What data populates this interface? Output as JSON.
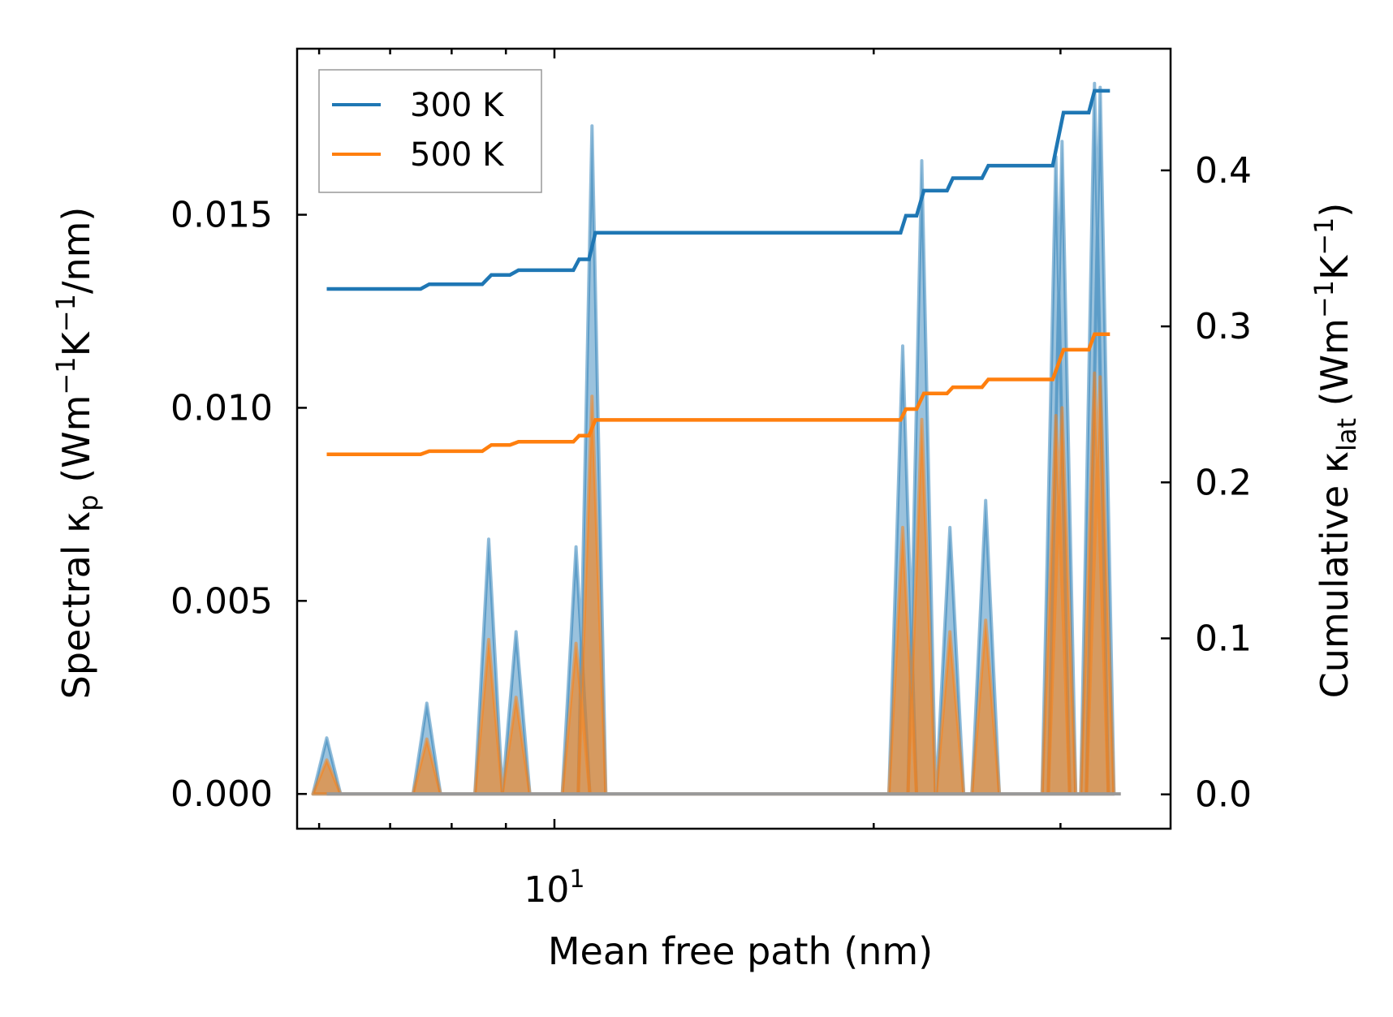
{
  "chart_data": {
    "type": "line",
    "title": "",
    "xlabel": "Mean free path (nm)",
    "ylabel_left": {
      "main": "Spectral κ",
      "sub": "p",
      "unit_open": " (Wm",
      "exp1": "−1",
      "mid": "K",
      "exp2": "−1",
      "unit_close": "/nm)"
    },
    "ylabel_right": {
      "main": "Cumulative κ",
      "sub": "lat",
      "unit_open": " (Wm",
      "exp1": "−1",
      "mid": "K",
      "exp2": "−1",
      "unit_close": ")"
    },
    "xscale": "log",
    "xlim": [
      5.72,
      38.1
    ],
    "xticks": [
      {
        "value": 10,
        "label": "10",
        "exp": "1"
      }
    ],
    "ylim_left": [
      -0.0009,
      0.0193
    ],
    "yticks_left": [
      {
        "value": 0.0,
        "label": "0.000"
      },
      {
        "value": 0.005,
        "label": "0.005"
      },
      {
        "value": 0.01,
        "label": "0.010"
      },
      {
        "value": 0.015,
        "label": "0.015"
      }
    ],
    "ylim_right": [
      -0.022,
      0.478
    ],
    "yticks_right": [
      {
        "value": 0.0,
        "label": "0.0"
      },
      {
        "value": 0.1,
        "label": "0.1"
      },
      {
        "value": 0.2,
        "label": "0.2"
      },
      {
        "value": 0.3,
        "label": "0.3"
      },
      {
        "value": 0.4,
        "label": "0.4"
      }
    ],
    "legend": {
      "placement": "top-left",
      "entries": [
        {
          "label": "300 K",
          "color": "#1f77b4"
        },
        {
          "label": "500 K",
          "color": "#ff7f0e"
        }
      ]
    },
    "spectral_series": [
      {
        "name": "300 K",
        "color": "#1f77b4",
        "peaks": [
          [
            6.1,
            0.00145
          ],
          [
            7.58,
            0.00235
          ],
          [
            8.67,
            0.0066
          ],
          [
            9.2,
            0.0042
          ],
          [
            10.48,
            0.0064
          ],
          [
            10.85,
            0.0173
          ],
          [
            21.3,
            0.0116
          ],
          [
            22.2,
            0.0164
          ],
          [
            23.6,
            0.0069
          ],
          [
            25.5,
            0.0076
          ],
          [
            29.7,
            0.0165
          ],
          [
            30.1,
            0.0169
          ],
          [
            32.3,
            0.0184
          ],
          [
            32.7,
            0.0183
          ]
        ]
      },
      {
        "name": "500 K",
        "color": "#ff7f0e",
        "peaks": [
          [
            6.1,
            0.00088
          ],
          [
            7.58,
            0.00142
          ],
          [
            8.67,
            0.004
          ],
          [
            9.2,
            0.0025
          ],
          [
            10.48,
            0.0039
          ],
          [
            10.85,
            0.0103
          ],
          [
            21.3,
            0.0069
          ],
          [
            22.2,
            0.0097
          ],
          [
            23.6,
            0.0042
          ],
          [
            25.5,
            0.0045
          ],
          [
            29.7,
            0.0098
          ],
          [
            30.1,
            0.01
          ],
          [
            32.3,
            0.0109
          ],
          [
            32.7,
            0.0108
          ]
        ]
      }
    ],
    "cumulative_series": [
      {
        "name": "300 K",
        "color": "#1f77b4",
        "points": [
          [
            6.1,
            0.324
          ],
          [
            7.48,
            0.324
          ],
          [
            7.62,
            0.327
          ],
          [
            8.55,
            0.327
          ],
          [
            8.72,
            0.333
          ],
          [
            9.08,
            0.333
          ],
          [
            9.25,
            0.336
          ],
          [
            10.42,
            0.336
          ],
          [
            10.55,
            0.343
          ],
          [
            10.78,
            0.343
          ],
          [
            10.93,
            0.36
          ],
          [
            21.2,
            0.36
          ],
          [
            21.45,
            0.371
          ],
          [
            21.95,
            0.371
          ],
          [
            22.3,
            0.387
          ],
          [
            23.45,
            0.387
          ],
          [
            23.75,
            0.395
          ],
          [
            25.3,
            0.395
          ],
          [
            25.65,
            0.403
          ],
          [
            29.5,
            0.403
          ],
          [
            30.2,
            0.437
          ],
          [
            31.9,
            0.437
          ],
          [
            32.3,
            0.451
          ],
          [
            33.4,
            0.451
          ]
        ]
      },
      {
        "name": "500 K",
        "color": "#ff7f0e",
        "points": [
          [
            6.1,
            0.218
          ],
          [
            7.48,
            0.218
          ],
          [
            7.62,
            0.22
          ],
          [
            8.55,
            0.22
          ],
          [
            8.72,
            0.224
          ],
          [
            9.08,
            0.224
          ],
          [
            9.25,
            0.226
          ],
          [
            10.42,
            0.226
          ],
          [
            10.55,
            0.23
          ],
          [
            10.78,
            0.23
          ],
          [
            10.93,
            0.24
          ],
          [
            21.2,
            0.24
          ],
          [
            21.45,
            0.247
          ],
          [
            21.95,
            0.247
          ],
          [
            22.3,
            0.257
          ],
          [
            23.45,
            0.257
          ],
          [
            23.75,
            0.261
          ],
          [
            25.3,
            0.261
          ],
          [
            25.65,
            0.266
          ],
          [
            29.5,
            0.266
          ],
          [
            30.2,
            0.285
          ],
          [
            31.9,
            0.285
          ],
          [
            32.3,
            0.295
          ],
          [
            33.4,
            0.295
          ]
        ]
      }
    ]
  }
}
